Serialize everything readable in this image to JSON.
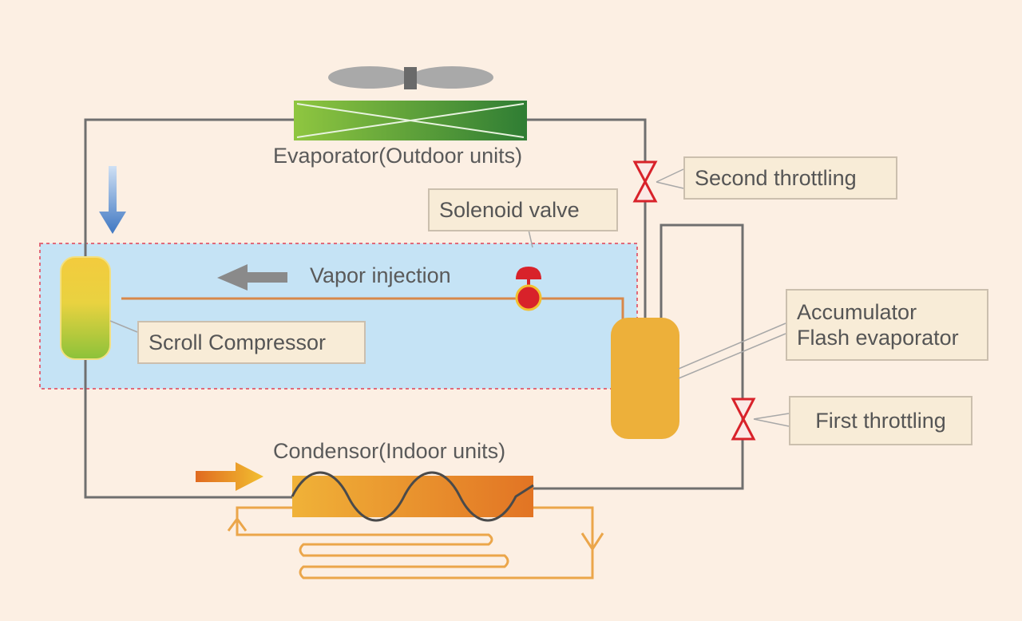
{
  "labels": {
    "evaporator": "Evaporator(Outdoor units)",
    "second_throttling": "Second throttling",
    "solenoid_valve": "Solenoid valve",
    "vapor_injection": "Vapor injection",
    "scroll_compressor": "Scroll Compressor",
    "accumulator": "Accumulator",
    "flash_evaporator": "Flash evaporator",
    "first_throttling": "First throttling",
    "condensor": "Condensor(Indoor units)"
  },
  "colors": {
    "background": "#fcefe3",
    "pipe": "#6f6f6f",
    "injection_zone": "#c5e3f5",
    "injection_border": "#e06a7a",
    "evaporator_green": "#4aa03a",
    "condensor_orange": "#e8902a",
    "vessel": "#edb03a",
    "valve_red": "#d8222a",
    "flow_blue": "#4f83c8",
    "flow_gray": "#8a8a8a",
    "flow_orange": "#e6a020"
  }
}
